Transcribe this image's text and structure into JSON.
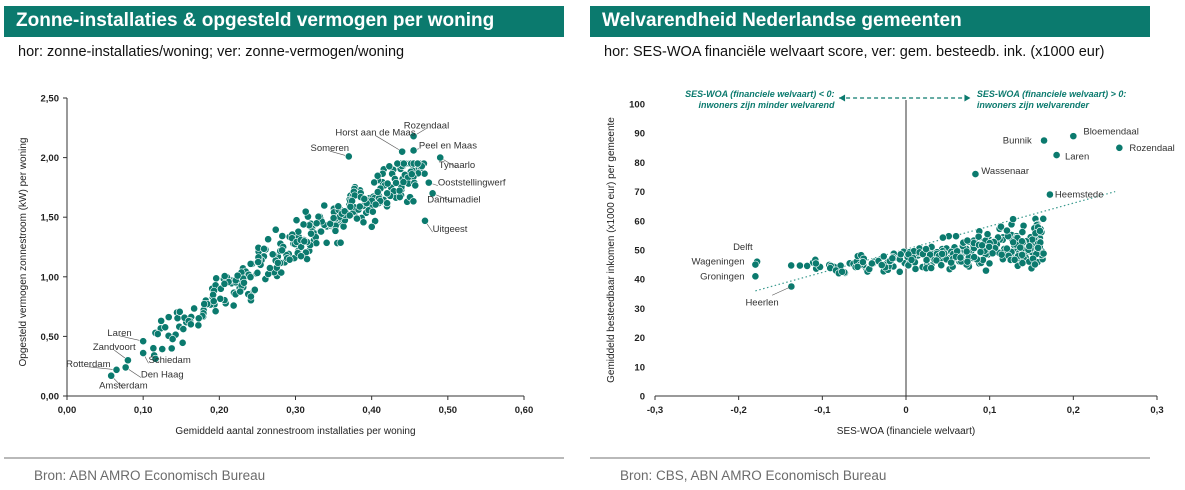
{
  "panels": [
    {
      "title": "Zonne-installaties & opgesteld vermogen per woning",
      "subtitle": "hor: zonne-installaties/woning; ver: zonne-vermogen/woning",
      "source": "Bron: ABN AMRO Economisch Bureau"
    },
    {
      "title": "Welvarendheid Nederlandse gemeenten",
      "subtitle": "hor: SES-WOA financiële welvaart score, ver: gem. besteedb. ink. (x1000 eur)",
      "source": "Bron: CBS, ABN AMRO Economisch Bureau"
    }
  ],
  "colors": {
    "accent": "#0b7a6e",
    "point": "#0b7a6e",
    "axis": "#333333",
    "trend": "#3a9a8e"
  },
  "chart_data": [
    {
      "type": "scatter",
      "xlabel": "Gemiddeld aantal zonnestroom installaties per woning",
      "ylabel": "Opgesteld vermogen zonnestroom (kW) per woning",
      "xlim": [
        0,
        0.6
      ],
      "ylim": [
        0,
        2.5
      ],
      "x_ticks": [
        "0,00",
        "0,10",
        "0,20",
        "0,30",
        "0,40",
        "0,50",
        "0,60"
      ],
      "y_ticks": [
        "0,00",
        "0,50",
        "1,00",
        "1,50",
        "2,00",
        "2,50"
      ],
      "grid": false,
      "cloud": {
        "n": 330,
        "slope": 4.3,
        "intercept": -0.03,
        "xmin": 0.11,
        "xmax": 0.47,
        "spread": 0.1
      },
      "labeled_points": [
        {
          "label": "Rozendaal",
          "x": 0.455,
          "y": 2.18,
          "tx": 0.472,
          "ty": 2.27,
          "anchor": "middle"
        },
        {
          "label": "Horst aan de Maas",
          "x": 0.44,
          "y": 2.05,
          "tx": 0.405,
          "ty": 2.21,
          "anchor": "middle"
        },
        {
          "label": "Peel en Maas",
          "x": 0.455,
          "y": 2.06,
          "tx": 0.462,
          "ty": 2.1,
          "anchor": "start"
        },
        {
          "label": "Someren",
          "x": 0.37,
          "y": 2.01,
          "tx": 0.345,
          "ty": 2.08,
          "anchor": "middle"
        },
        {
          "label": "Tynaarlo",
          "x": 0.49,
          "y": 2.0,
          "tx": 0.512,
          "ty": 1.94,
          "anchor": "middle"
        },
        {
          "label": "Ooststellingwerf",
          "x": 0.475,
          "y": 1.79,
          "tx": 0.487,
          "ty": 1.79,
          "anchor": "start"
        },
        {
          "label": "Dantumadiel",
          "x": 0.48,
          "y": 1.7,
          "tx": 0.508,
          "ty": 1.65,
          "anchor": "middle"
        },
        {
          "label": "Uitgeest",
          "x": 0.47,
          "y": 1.47,
          "tx": 0.48,
          "ty": 1.4,
          "anchor": "start"
        },
        {
          "label": "Laren",
          "x": 0.1,
          "y": 0.46,
          "tx": 0.069,
          "ty": 0.53,
          "anchor": "middle"
        },
        {
          "label": "Zandvoort",
          "x": 0.08,
          "y": 0.3,
          "tx": 0.062,
          "ty": 0.41,
          "anchor": "middle"
        },
        {
          "label": "Schiedam",
          "x": 0.1,
          "y": 0.36,
          "tx": 0.107,
          "ty": 0.3,
          "anchor": "start"
        },
        {
          "label": "Rotterdam",
          "x": 0.065,
          "y": 0.22,
          "tx": 0.028,
          "ty": 0.27,
          "anchor": "middle"
        },
        {
          "label": "Den Haag",
          "x": 0.077,
          "y": 0.24,
          "tx": 0.097,
          "ty": 0.18,
          "anchor": "start"
        },
        {
          "label": "Amsterdam",
          "x": 0.058,
          "y": 0.17,
          "tx": 0.074,
          "ty": 0.09,
          "anchor": "middle"
        }
      ]
    },
    {
      "type": "scatter",
      "xlabel": "SES-WOA (financiele welvaart)",
      "ylabel": "Gemiddeld besteedbaar inkomen (x1000 eur) per gemeente",
      "xlim": [
        -0.3,
        0.3
      ],
      "ylim": [
        0,
        100
      ],
      "x_ticks": [
        "-0,3",
        "-0,2",
        "-0,1",
        "0",
        "0,1",
        "0,2",
        "0,3"
      ],
      "y_ticks": [
        "0",
        "10",
        "20",
        "30",
        "40",
        "50",
        "60",
        "70",
        "80",
        "90",
        "100"
      ],
      "grid": false,
      "trendline": {
        "x1": -0.18,
        "y1": 36,
        "x2": 0.25,
        "y2": 70
      },
      "cloud": {
        "n": 320
      },
      "annotation_left": [
        "SES-WOA (financiele welvaart) < 0:",
        "inwoners zijn minder welvarend"
      ],
      "annotation_right": [
        "SES-WOA (financiele welvaart) > 0:",
        "inwoners zijn welvarender"
      ],
      "labeled_points": [
        {
          "label": "Bloemendaal",
          "x": 0.2,
          "y": 89,
          "tx": 0.212,
          "ty": 90.5,
          "anchor": "start"
        },
        {
          "label": "Bunnik",
          "x": 0.165,
          "y": 87.5,
          "tx": 0.133,
          "ty": 87.5,
          "anchor": "middle"
        },
        {
          "label": "Rozendaal",
          "x": 0.255,
          "y": 85,
          "tx": 0.267,
          "ty": 85,
          "anchor": "start"
        },
        {
          "label": "Laren",
          "x": 0.18,
          "y": 82.5,
          "tx": 0.19,
          "ty": 82,
          "anchor": "start"
        },
        {
          "label": "Wassenaar",
          "x": 0.083,
          "y": 76,
          "tx": 0.09,
          "ty": 77,
          "anchor": "start"
        },
        {
          "label": "Heemstede",
          "x": 0.172,
          "y": 69,
          "tx": 0.178,
          "ty": 69,
          "anchor": "start"
        },
        {
          "label": "Delft",
          "x": -0.178,
          "y": 46,
          "tx": -0.195,
          "ty": 51,
          "anchor": "middle"
        },
        {
          "label": "Wageningen",
          "x": -0.18,
          "y": 45,
          "tx": -0.193,
          "ty": 46,
          "anchor": "end"
        },
        {
          "label": "Groningen",
          "x": -0.18,
          "y": 41,
          "tx": -0.193,
          "ty": 41,
          "anchor": "end"
        },
        {
          "label": "Heerlen",
          "x": -0.137,
          "y": 37.5,
          "tx": -0.172,
          "ty": 32,
          "anchor": "middle"
        }
      ]
    }
  ]
}
